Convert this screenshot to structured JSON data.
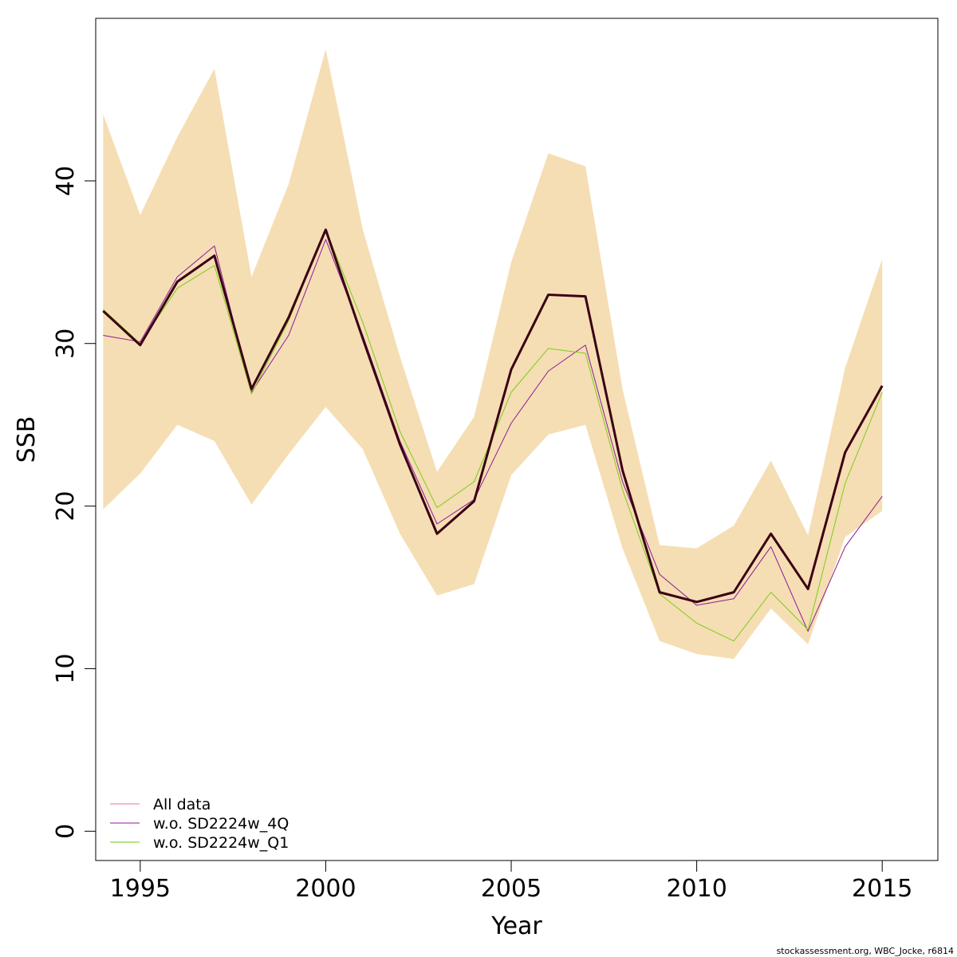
{
  "chart_data": {
    "type": "line",
    "title": "",
    "xlabel": "Year",
    "ylabel": "SSB",
    "xlim": [
      1993.8,
      2016.5
    ],
    "ylim": [
      -1.8,
      50
    ],
    "x_ticks": [
      1995,
      2000,
      2005,
      2010,
      2015
    ],
    "y_ticks": [
      0,
      10,
      20,
      30,
      40
    ],
    "legend_position": "bottom-left",
    "years": [
      1994,
      1995,
      1996,
      1997,
      1998,
      1999,
      2000,
      2001,
      2002,
      2003,
      2004,
      2005,
      2006,
      2007,
      2008,
      2009,
      2010,
      2011,
      2012,
      2013,
      2014,
      2015
    ],
    "confidence_band": {
      "color": "#F5DEB3",
      "upper": [
        44.1,
        37.9,
        42.7,
        46.9,
        34.1,
        39.8,
        48.1,
        37.0,
        29.2,
        22.1,
        25.5,
        35.0,
        41.7,
        40.9,
        27.2,
        17.6,
        17.4,
        18.8,
        22.8,
        18.2,
        28.5,
        35.2
      ],
      "lower": [
        19.8,
        22.0,
        25.0,
        24.0,
        20.1,
        23.2,
        26.1,
        23.5,
        18.3,
        14.5,
        15.2,
        21.9,
        24.4,
        25.0,
        17.4,
        11.7,
        10.9,
        10.6,
        13.7,
        11.5,
        18.1,
        19.7
      ]
    },
    "series": [
      {
        "name": "All data",
        "color": "#f07b8e",
        "legend_color": "#f4a4ae",
        "values": [
          32.0,
          29.9,
          33.8,
          35.4,
          27.2,
          31.6,
          37.0,
          30.3,
          23.8,
          18.3,
          20.3,
          28.4,
          33.0,
          32.9,
          22.2,
          14.7,
          14.1,
          14.7,
          18.3,
          14.9,
          23.3,
          27.4
        ]
      },
      {
        "name": "w.o. SD2224w_4Q",
        "color": "#8b1a9a",
        "legend_color": "#b067b8",
        "values": [
          30.5,
          30.1,
          34.1,
          36.0,
          27.0,
          30.5,
          36.4,
          30.5,
          24.0,
          18.9,
          20.4,
          25.1,
          28.3,
          29.9,
          21.5,
          15.8,
          13.9,
          14.3,
          17.5,
          12.3,
          17.5,
          20.6
        ]
      },
      {
        "name": "w.o. SD2224w_Q1",
        "color": "#7ccd1a",
        "legend_color": "#9fd95f",
        "values": [
          32.1,
          30.0,
          33.4,
          34.8,
          26.9,
          31.4,
          37.0,
          31.3,
          24.6,
          19.9,
          21.5,
          27.0,
          29.7,
          29.4,
          21.0,
          14.6,
          12.8,
          11.7,
          14.7,
          12.4,
          21.4,
          27.0
        ]
      },
      {
        "name": "",
        "color": "#3a0014",
        "values": [
          32.0,
          29.9,
          33.8,
          35.4,
          27.2,
          31.6,
          37.0,
          30.3,
          23.8,
          18.3,
          20.3,
          28.4,
          33.0,
          32.9,
          22.2,
          14.7,
          14.1,
          14.7,
          18.3,
          14.9,
          23.3,
          27.4
        ]
      }
    ]
  },
  "footer": {
    "credit": "stockassessment.org, WBC_Jocke, r6814"
  }
}
